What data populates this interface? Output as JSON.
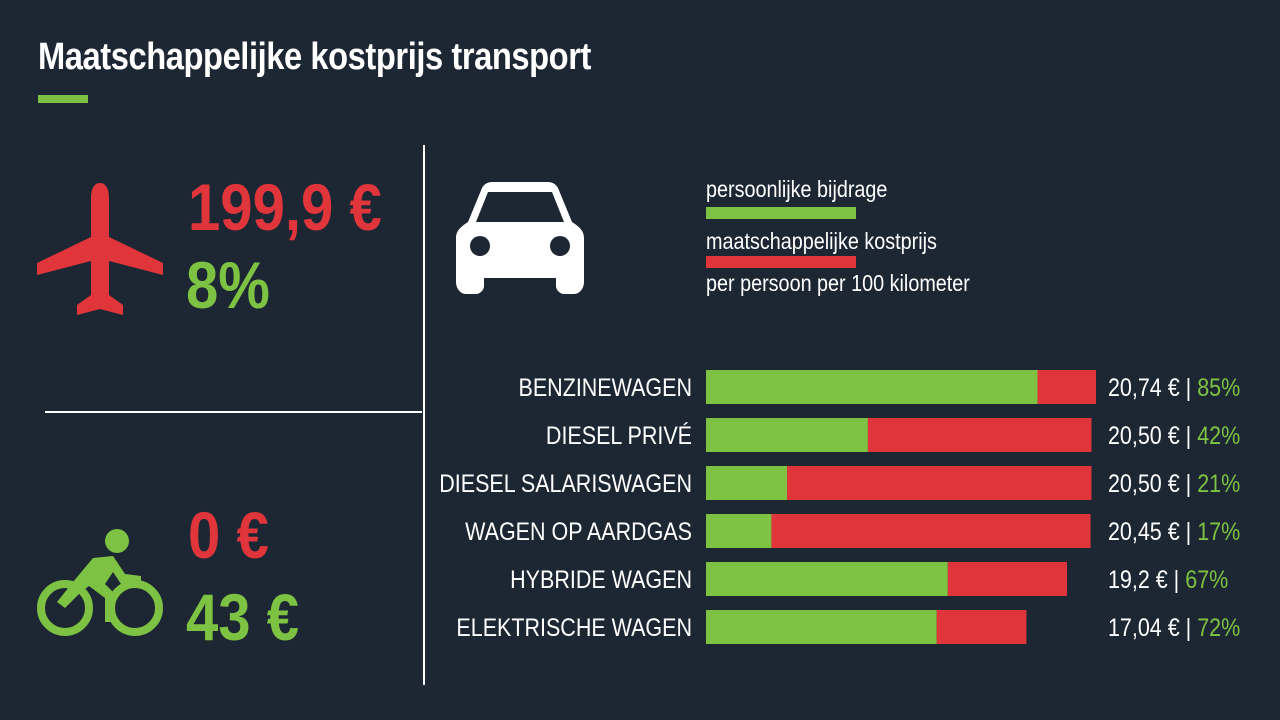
{
  "title": "Maatschappelijke kostprijs transport",
  "colors": {
    "background": "#1d2733",
    "green": "#7dc242",
    "red": "#e0353b",
    "white": "#ffffff"
  },
  "plane": {
    "icon": "airplane-icon",
    "cost": "199,9 €",
    "share": "8%"
  },
  "bike": {
    "icon": "bicycle-icon",
    "cost": "0 €",
    "contribution": "43 €"
  },
  "car_icon": "car-icon",
  "legend": {
    "personal": "persoonlijke bijdrage",
    "societal": "maatschappelijke kostprijs",
    "unit": "per persoon per 100 kilometer"
  },
  "chart_data": {
    "type": "bar",
    "orientation": "horizontal",
    "stacked": true,
    "categories": [
      "BENZINEWAGEN",
      "DIESEL PRIVÉ",
      "DIESEL SALARISWAGEN",
      "WAGEN OP AARDGAS",
      "HYBRIDE WAGEN",
      "ELEKTRISCHE WAGEN"
    ],
    "series": [
      {
        "name": "persoonlijke bijdrage",
        "color": "#7dc242",
        "values": [
          17.63,
          8.61,
          4.31,
          3.48,
          12.86,
          12.27
        ]
      },
      {
        "name": "maatschappelijke kostprijs",
        "color": "#e0353b",
        "values": [
          3.11,
          11.89,
          16.19,
          16.97,
          6.34,
          4.77
        ]
      }
    ],
    "totals": [
      20.74,
      20.5,
      20.5,
      20.45,
      19.2,
      17.04
    ],
    "total_labels": [
      "20,74 €",
      "20,50 €",
      "20,50 €",
      "20,45 €",
      "19,2 €",
      "17,04 €"
    ],
    "percent_labels": [
      "85%",
      "42%",
      "21%",
      "17%",
      "67%",
      "72%"
    ],
    "xlim": [
      0,
      20.74
    ]
  }
}
